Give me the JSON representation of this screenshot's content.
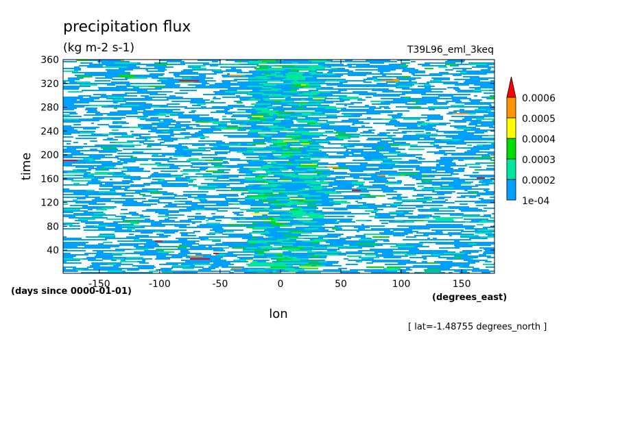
{
  "chart_data": {
    "type": "heatmap",
    "title": "precipitation flux",
    "units": "(kg m-2 s-1)",
    "experiment": "T39L96_eml_3keq",
    "xlabel": "lon",
    "x_units": "(degrees_east)",
    "ylabel": "time",
    "y_units": "(days since 0000-01-01)",
    "note": "[ lat=-1.48755 degrees_north ]",
    "xlim": [
      -180,
      177.1875
    ],
    "ylim": [
      1,
      360
    ],
    "x_ticks": [
      -150,
      -100,
      -50,
      0,
      50,
      100,
      150
    ],
    "x_tick_labels": [
      "-150",
      "-100",
      "-50",
      "0",
      "50",
      "100",
      "150"
    ],
    "y_ticks": [
      40,
      80,
      120,
      160,
      200,
      240,
      280,
      320,
      360
    ],
    "y_tick_labels": [
      "40",
      "80",
      "120",
      "160",
      "200",
      "240",
      "280",
      "320",
      "360"
    ],
    "colorbar": {
      "levels": [
        0.0001,
        0.0002,
        0.0003,
        0.0004,
        0.0005,
        0.0006
      ],
      "labels": [
        "1e-04",
        "0.0002",
        "0.0003",
        "0.0004",
        "0.0005",
        "0.0006"
      ],
      "colors": [
        "#00a0ff",
        "#00e6a0",
        "#00dc00",
        "#ffff00",
        "#ff9600",
        "#ff0000"
      ],
      "extend": "max"
    },
    "field_description": {
      "background_color": "#ffffff",
      "dominant_band": "1e-04 to 0.0002",
      "enhanced_region_lon": [
        -30,
        30
      ],
      "enhanced_region_band": "0.0002 to 0.0004"
    }
  }
}
